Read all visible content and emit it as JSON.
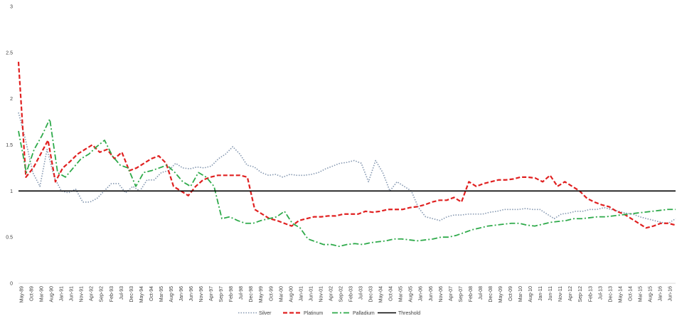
{
  "chart_data": {
    "type": "line",
    "title": "",
    "xlabel": "",
    "ylabel": "",
    "ylim": [
      0,
      3
    ],
    "yticks": [
      "0",
      "0.5",
      "1",
      "1.5",
      "2",
      "2.5",
      "3"
    ],
    "grid": false,
    "legend_position": "bottom",
    "x_tick_labels": [
      "May-89",
      "Oct-89",
      "Mar-90",
      "Aug-90",
      "Jan-91",
      "Jun-91",
      "Nov-91",
      "Apr-92",
      "Sep-92",
      "Feb-93",
      "Jul-93",
      "Dec-93",
      "May-94",
      "Oct-94",
      "Mar-95",
      "Aug-95",
      "Jan-96",
      "Jun-96",
      "Nov-96",
      "Apr-97",
      "Sep-97",
      "Feb-98",
      "Jul-98",
      "Dec-98",
      "May-99",
      "Oct-99",
      "Mar-00",
      "Aug-00",
      "Jan-01",
      "Jun-01",
      "Nov-01",
      "Apr-02",
      "Sep-02",
      "Feb-03",
      "Jul-03",
      "Dec-03",
      "May-04",
      "Oct-04",
      "Mar-05",
      "Aug-05",
      "Jan-06",
      "Jun-06",
      "Nov-06",
      "Apr-07",
      "Sep-07",
      "Feb-08",
      "Jul-08",
      "Dec-08",
      "May-09",
      "Oct-09",
      "Mar-10",
      "Aug-10",
      "Jan-11",
      "Jun-11",
      "Nov-11",
      "Apr-12",
      "Sep-12",
      "Feb-13",
      "Jul-13",
      "Dec-13",
      "May-14",
      "Oct-14",
      "Mar-15",
      "Aug-15",
      "Jan-16",
      "Jun-16"
    ],
    "series": [
      {
        "name": "Silver",
        "color": "#8497b0",
        "style": "dotted",
        "values": [
          1.85,
          1.55,
          1.2,
          1.05,
          1.45,
          1.15,
          1.0,
          0.98,
          1.02,
          0.88,
          0.88,
          0.92,
          1.0,
          1.08,
          1.08,
          0.98,
          1.05,
          1.0,
          1.12,
          1.12,
          1.2,
          1.22,
          1.3,
          1.25,
          1.24,
          1.26,
          1.25,
          1.27,
          1.35,
          1.4,
          1.48,
          1.4,
          1.28,
          1.26,
          1.2,
          1.17,
          1.18,
          1.15,
          1.18,
          1.17,
          1.17,
          1.18,
          1.2,
          1.24,
          1.27,
          1.3,
          1.31,
          1.33,
          1.3,
          1.1,
          1.33,
          1.2,
          1.0,
          1.1,
          1.05,
          1.0,
          0.82,
          0.72,
          0.7,
          0.68,
          0.72,
          0.74,
          0.74,
          0.75,
          0.75,
          0.75,
          0.77,
          0.78,
          0.8,
          0.8,
          0.8,
          0.81,
          0.8,
          0.8,
          0.75,
          0.7,
          0.75,
          0.76,
          0.78,
          0.78,
          0.8,
          0.8,
          0.82,
          0.8,
          0.78,
          0.76,
          0.75,
          0.72,
          0.7,
          0.68,
          0.66,
          0.65,
          0.7
        ]
      },
      {
        "name": "Platinum",
        "color": "#e02020",
        "style": "dashed",
        "values": [
          2.4,
          1.15,
          1.25,
          1.4,
          1.55,
          1.1,
          1.25,
          1.32,
          1.4,
          1.45,
          1.5,
          1.42,
          1.45,
          1.35,
          1.42,
          1.22,
          1.25,
          1.3,
          1.35,
          1.38,
          1.3,
          1.05,
          1.0,
          0.95,
          1.05,
          1.12,
          1.15,
          1.17,
          1.17,
          1.17,
          1.17,
          1.15,
          0.8,
          0.75,
          0.7,
          0.68,
          0.65,
          0.62,
          0.68,
          0.7,
          0.72,
          0.72,
          0.73,
          0.73,
          0.75,
          0.75,
          0.75,
          0.78,
          0.77,
          0.78,
          0.8,
          0.8,
          0.8,
          0.82,
          0.83,
          0.85,
          0.88,
          0.9,
          0.9,
          0.93,
          0.88,
          1.1,
          1.05,
          1.08,
          1.1,
          1.12,
          1.12,
          1.13,
          1.15,
          1.15,
          1.14,
          1.1,
          1.17,
          1.05,
          1.1,
          1.05,
          1.0,
          0.92,
          0.88,
          0.85,
          0.83,
          0.78,
          0.75,
          0.7,
          0.65,
          0.6,
          0.62,
          0.65,
          0.65,
          0.63
        ]
      },
      {
        "name": "Palladium",
        "color": "#2eaa4a",
        "style": "dashdot",
        "values": [
          1.65,
          1.2,
          1.45,
          1.6,
          1.78,
          1.2,
          1.15,
          1.25,
          1.35,
          1.4,
          1.48,
          1.55,
          1.38,
          1.28,
          1.25,
          1.05,
          1.2,
          1.22,
          1.25,
          1.28,
          1.2,
          1.1,
          1.05,
          1.2,
          1.15,
          1.05,
          0.7,
          0.72,
          0.68,
          0.65,
          0.65,
          0.68,
          0.7,
          0.72,
          0.78,
          0.65,
          0.6,
          0.48,
          0.45,
          0.42,
          0.42,
          0.4,
          0.42,
          0.43,
          0.42,
          0.44,
          0.45,
          0.46,
          0.48,
          0.48,
          0.47,
          0.46,
          0.47,
          0.48,
          0.5,
          0.5,
          0.52,
          0.55,
          0.58,
          0.6,
          0.62,
          0.63,
          0.64,
          0.65,
          0.65,
          0.63,
          0.62,
          0.64,
          0.66,
          0.67,
          0.68,
          0.7,
          0.7,
          0.71,
          0.72,
          0.72,
          0.73,
          0.74,
          0.75,
          0.76,
          0.77,
          0.78,
          0.79,
          0.8,
          0.8
        ]
      },
      {
        "name": "Threshold",
        "color": "#000000",
        "style": "solid",
        "constant": 1
      }
    ]
  }
}
